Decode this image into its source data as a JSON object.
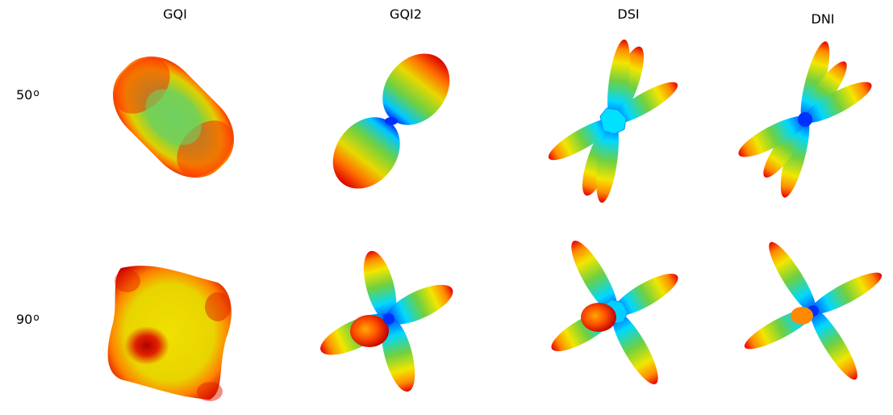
{
  "columns": [
    {
      "key": "gqi",
      "label": "GQI"
    },
    {
      "key": "gqi2",
      "label": "GQI2"
    },
    {
      "key": "dsi",
      "label": "DSI"
    },
    {
      "key": "dni",
      "label": "DNI"
    }
  ],
  "rows": [
    {
      "key": "a50",
      "label": "50",
      "unit": "o"
    },
    {
      "key": "a90",
      "label": "90",
      "unit": "o"
    }
  ],
  "colors": {
    "red": "#e60000",
    "orange": "#ff8a00",
    "yellow": "#f2e600",
    "green": "#70d040",
    "cyan": "#00d8ff",
    "blue": "#0030ff"
  }
}
